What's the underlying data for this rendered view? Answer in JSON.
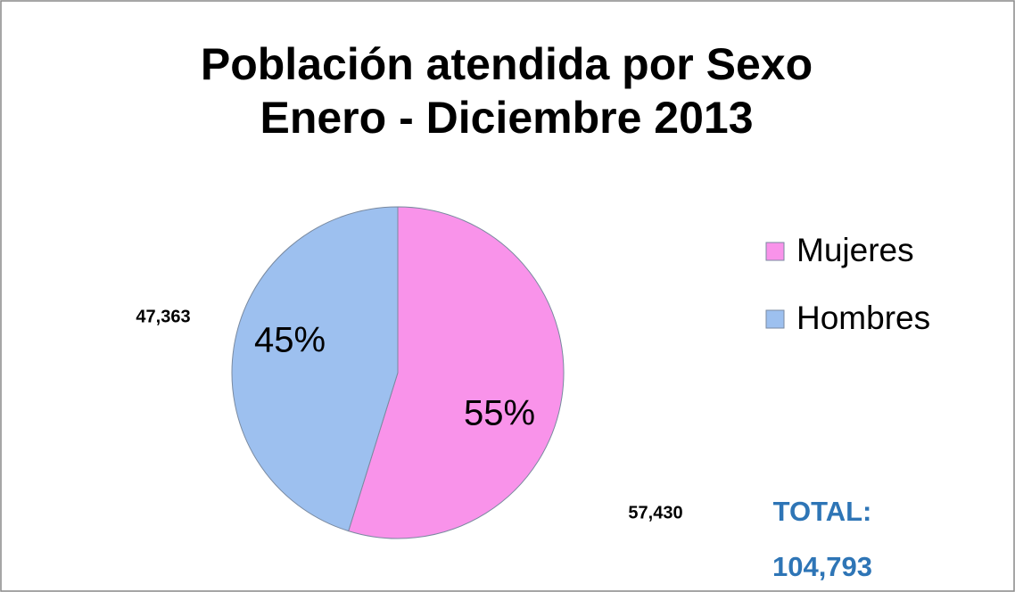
{
  "chart_data": {
    "type": "pie",
    "title_lines": [
      "Población atendida por Sexo",
      "Enero - Diciembre 2013"
    ],
    "categories": [
      "Mujeres",
      "Hombres"
    ],
    "values": [
      57430,
      47363
    ],
    "value_labels": [
      "57,430",
      "47,363"
    ],
    "percent_labels": [
      "55%",
      "45%"
    ],
    "colors": [
      "#f993ea",
      "#9dc0ef"
    ],
    "legend": "right",
    "total_title": "TOTAL:",
    "total_value": "104,793"
  }
}
